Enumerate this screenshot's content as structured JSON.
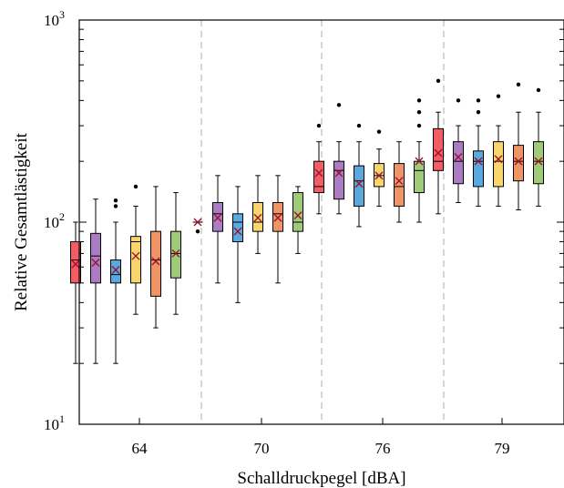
{
  "chart_data": {
    "type": "box",
    "title": "",
    "xlabel": "Schalldruckpegel [dBA]",
    "ylabel": "Relative Gesamtlästigkeit",
    "yscale": "log",
    "ylim": [
      10,
      1000
    ],
    "ytick_labels": [
      {
        "value": 10,
        "base": "10",
        "exp": "1"
      },
      {
        "value": 100,
        "base": "10",
        "exp": "2"
      },
      {
        "value": 1000,
        "base": "10",
        "exp": "3"
      }
    ],
    "categories": [
      "64",
      "70",
      "76",
      "79"
    ],
    "series_colors": [
      "#f25c63",
      "#a97cc4",
      "#5aa9de",
      "#f8d66d",
      "#ef9464",
      "#9fcb78"
    ],
    "grid": false,
    "group_separators": "dashed",
    "groups": [
      {
        "label": "64",
        "boxes": [
          {
            "whislo": 20,
            "q1": 50,
            "med": 65,
            "q3": 80,
            "whishi": 100,
            "mean": 62,
            "fliers": []
          },
          {
            "whislo": 20,
            "q1": 50,
            "med": 68,
            "q3": 88,
            "whishi": 130,
            "mean": 63,
            "fliers": []
          },
          {
            "whislo": 20,
            "q1": 50,
            "med": 55,
            "q3": 65,
            "whishi": 100,
            "mean": 58,
            "fliers": [
              120,
              128
            ]
          },
          {
            "whislo": 35,
            "q1": 50,
            "med": 80,
            "q3": 85,
            "whishi": 120,
            "mean": 68,
            "fliers": [
              150
            ]
          },
          {
            "whislo": 30,
            "q1": 43,
            "med": 65,
            "q3": 90,
            "whishi": 150,
            "mean": 64,
            "fliers": []
          },
          {
            "whislo": 35,
            "q1": 53,
            "med": 70,
            "q3": 90,
            "whishi": 140,
            "mean": 70,
            "fliers": []
          }
        ]
      },
      {
        "label": "70",
        "boxes": [
          {
            "whislo": 100,
            "q1": 100,
            "med": 100,
            "q3": 100,
            "whishi": 100,
            "mean": 100,
            "fliers": [
              90
            ]
          },
          {
            "whislo": 50,
            "q1": 90,
            "med": 110,
            "q3": 125,
            "whishi": 170,
            "mean": 105,
            "fliers": []
          },
          {
            "whislo": 40,
            "q1": 80,
            "med": 100,
            "q3": 110,
            "whishi": 150,
            "mean": 90,
            "fliers": []
          },
          {
            "whislo": 70,
            "q1": 90,
            "med": 100,
            "q3": 125,
            "whishi": 170,
            "mean": 105,
            "fliers": []
          },
          {
            "whislo": 50,
            "q1": 90,
            "med": 110,
            "q3": 125,
            "whishi": 170,
            "mean": 105,
            "fliers": []
          },
          {
            "whislo": 70,
            "q1": 90,
            "med": 100,
            "q3": 140,
            "whishi": 150,
            "mean": 108,
            "fliers": []
          }
        ]
      },
      {
        "label": "76",
        "boxes": [
          {
            "whislo": 110,
            "q1": 140,
            "med": 150,
            "q3": 200,
            "whishi": 250,
            "mean": 175,
            "fliers": [
              300
            ]
          },
          {
            "whislo": 110,
            "q1": 130,
            "med": 180,
            "q3": 200,
            "whishi": 250,
            "mean": 175,
            "fliers": [
              380
            ]
          },
          {
            "whislo": 95,
            "q1": 120,
            "med": 160,
            "q3": 190,
            "whishi": 250,
            "mean": 155,
            "fliers": [
              300
            ]
          },
          {
            "whislo": 120,
            "q1": 150,
            "med": 170,
            "q3": 195,
            "whishi": 230,
            "mean": 170,
            "fliers": [
              280
            ]
          },
          {
            "whislo": 100,
            "q1": 120,
            "med": 150,
            "q3": 195,
            "whishi": 250,
            "mean": 160,
            "fliers": []
          },
          {
            "whislo": 100,
            "q1": 140,
            "med": 180,
            "q3": 200,
            "whishi": 250,
            "mean": 200,
            "fliers": [
              300,
              350,
              400
            ]
          }
        ]
      },
      {
        "label": "79",
        "boxes": [
          {
            "whislo": 110,
            "q1": 180,
            "med": 200,
            "q3": 290,
            "whishi": 350,
            "mean": 220,
            "fliers": [
              500
            ]
          },
          {
            "whislo": 125,
            "q1": 155,
            "med": 200,
            "q3": 250,
            "whishi": 300,
            "mean": 210,
            "fliers": [
              400
            ]
          },
          {
            "whislo": 120,
            "q1": 150,
            "med": 200,
            "q3": 225,
            "whishi": 300,
            "mean": 200,
            "fliers": [
              350,
              400
            ]
          },
          {
            "whislo": 120,
            "q1": 150,
            "med": 200,
            "q3": 250,
            "whishi": 300,
            "mean": 205,
            "fliers": [
              420
            ]
          },
          {
            "whislo": 115,
            "q1": 160,
            "med": 200,
            "q3": 240,
            "whishi": 350,
            "mean": 200,
            "fliers": [
              480
            ]
          },
          {
            "whislo": 120,
            "q1": 155,
            "med": 200,
            "q3": 250,
            "whishi": 350,
            "mean": 200,
            "fliers": [
              450
            ]
          }
        ]
      }
    ]
  }
}
